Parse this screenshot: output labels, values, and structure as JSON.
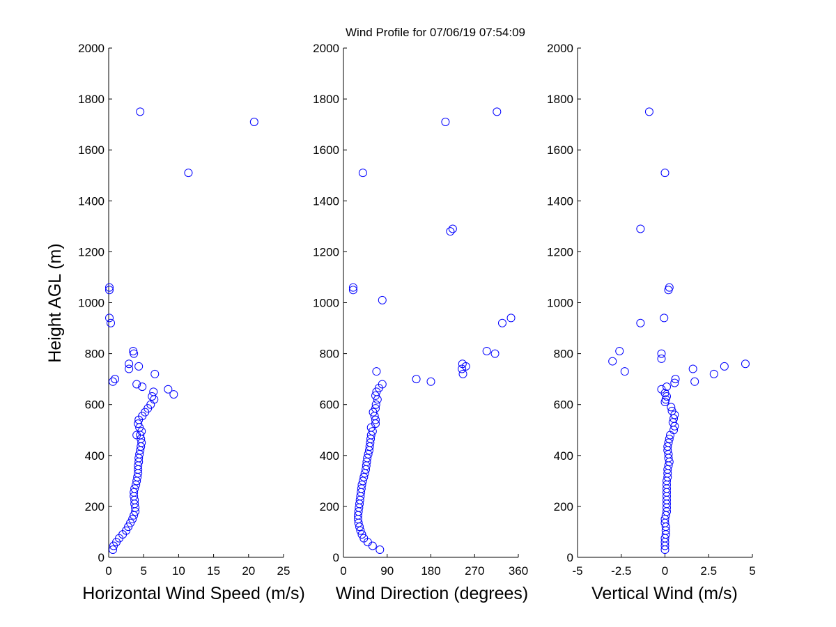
{
  "title": "Wind Profile for  07/06/19 07:54:09",
  "ylabel": "Height AGL (m)",
  "chart_data": [
    {
      "type": "scatter",
      "title": "Wind Profile for  07/06/19 07:54:09",
      "xlabel": "Horizontal Wind Speed (m/s)",
      "ylabel": "Height AGL (m)",
      "xlim": [
        0,
        25
      ],
      "ylim": [
        0,
        2000
      ],
      "xticks": [
        0,
        5,
        10,
        15,
        20,
        25
      ],
      "xtick_labels": [
        "0",
        "5",
        "10",
        "15",
        "20",
        "25"
      ],
      "yticks": [
        0,
        200,
        400,
        600,
        800,
        1000,
        1200,
        1400,
        1600,
        1800,
        2000
      ],
      "ytick_labels": [
        "0",
        "200",
        "400",
        "600",
        "800",
        "1000",
        "1200",
        "1400",
        "1600",
        "1800",
        "2000"
      ],
      "marker_color": "#0000ff",
      "points": [
        [
          0.6,
          30
        ],
        [
          0.7,
          45
        ],
        [
          1.1,
          60
        ],
        [
          1.5,
          75
        ],
        [
          2.0,
          90
        ],
        [
          2.5,
          105
        ],
        [
          2.8,
          120
        ],
        [
          3.1,
          135
        ],
        [
          3.4,
          150
        ],
        [
          3.6,
          165
        ],
        [
          3.8,
          180
        ],
        [
          3.8,
          195
        ],
        [
          3.7,
          210
        ],
        [
          3.7,
          225
        ],
        [
          3.6,
          240
        ],
        [
          3.6,
          255
        ],
        [
          3.7,
          270
        ],
        [
          3.9,
          285
        ],
        [
          4.0,
          300
        ],
        [
          4.1,
          315
        ],
        [
          4.2,
          330
        ],
        [
          4.2,
          345
        ],
        [
          4.2,
          360
        ],
        [
          4.3,
          375
        ],
        [
          4.3,
          390
        ],
        [
          4.4,
          405
        ],
        [
          4.5,
          420
        ],
        [
          4.6,
          435
        ],
        [
          4.7,
          450
        ],
        [
          4.6,
          465
        ],
        [
          4.5,
          480
        ],
        [
          4.0,
          480
        ],
        [
          4.7,
          495
        ],
        [
          4.4,
          510
        ],
        [
          4.2,
          525
        ],
        [
          4.3,
          540
        ],
        [
          4.8,
          555
        ],
        [
          5.2,
          570
        ],
        [
          5.6,
          585
        ],
        [
          6.0,
          600
        ],
        [
          6.5,
          620
        ],
        [
          6.2,
          632
        ],
        [
          6.4,
          650
        ],
        [
          8.5,
          660
        ],
        [
          9.3,
          640
        ],
        [
          4.8,
          670
        ],
        [
          4.0,
          680
        ],
        [
          0.6,
          690
        ],
        [
          0.9,
          700
        ],
        [
          6.6,
          720
        ],
        [
          4.3,
          750
        ],
        [
          2.9,
          740
        ],
        [
          2.9,
          760
        ],
        [
          3.6,
          800
        ],
        [
          3.5,
          810
        ],
        [
          0.3,
          920
        ],
        [
          0.1,
          940
        ],
        [
          0.1,
          1050
        ],
        [
          0.1,
          1060
        ],
        [
          11.4,
          1510
        ],
        [
          20.8,
          1710
        ],
        [
          4.5,
          1750
        ]
      ]
    },
    {
      "type": "scatter",
      "xlabel": "Wind Direction (degrees)",
      "xlim": [
        0,
        360
      ],
      "ylim": [
        0,
        2000
      ],
      "xticks": [
        0,
        90,
        180,
        270,
        360
      ],
      "xtick_labels": [
        "0",
        "90",
        "180",
        "270",
        "360"
      ],
      "yticks": [
        0,
        200,
        400,
        600,
        800,
        1000,
        1200,
        1400,
        1600,
        1800,
        2000
      ],
      "ytick_labels": [
        "0",
        "200",
        "400",
        "600",
        "800",
        "1000",
        "1200",
        "1400",
        "1600",
        "1800",
        "2000"
      ],
      "marker_color": "#0000ff",
      "points": [
        [
          75,
          30
        ],
        [
          60,
          45
        ],
        [
          50,
          60
        ],
        [
          42,
          75
        ],
        [
          38,
          90
        ],
        [
          35,
          105
        ],
        [
          33,
          120
        ],
        [
          31,
          135
        ],
        [
          30,
          150
        ],
        [
          30,
          165
        ],
        [
          31,
          180
        ],
        [
          32,
          195
        ],
        [
          33,
          210
        ],
        [
          34,
          225
        ],
        [
          35,
          240
        ],
        [
          36,
          255
        ],
        [
          37,
          270
        ],
        [
          38,
          285
        ],
        [
          40,
          300
        ],
        [
          42,
          315
        ],
        [
          44,
          330
        ],
        [
          46,
          345
        ],
        [
          47,
          360
        ],
        [
          48,
          375
        ],
        [
          49,
          390
        ],
        [
          51,
          405
        ],
        [
          53,
          420
        ],
        [
          54,
          435
        ],
        [
          55,
          450
        ],
        [
          56,
          465
        ],
        [
          57,
          480
        ],
        [
          60,
          495
        ],
        [
          57,
          510
        ],
        [
          66,
          525
        ],
        [
          66,
          540
        ],
        [
          64,
          555
        ],
        [
          61,
          570
        ],
        [
          66,
          585
        ],
        [
          67,
          600
        ],
        [
          70,
          620
        ],
        [
          66,
          635
        ],
        [
          68,
          650
        ],
        [
          73,
          665
        ],
        [
          80,
          680
        ],
        [
          150,
          700
        ],
        [
          180,
          690
        ],
        [
          68,
          730
        ],
        [
          246,
          720
        ],
        [
          244,
          740
        ],
        [
          245,
          760
        ],
        [
          252,
          750
        ],
        [
          295,
          810
        ],
        [
          312,
          800
        ],
        [
          327,
          920
        ],
        [
          345,
          940
        ],
        [
          80,
          1010
        ],
        [
          20,
          1050
        ],
        [
          20,
          1060
        ],
        [
          220,
          1280
        ],
        [
          225,
          1290
        ],
        [
          40,
          1510
        ],
        [
          210,
          1710
        ],
        [
          316,
          1750
        ]
      ]
    },
    {
      "type": "scatter",
      "xlabel": "Vertical Wind (m/s)",
      "xlim": [
        -5,
        5
      ],
      "ylim": [
        0,
        2000
      ],
      "xticks": [
        -5,
        -2.5,
        0,
        2.5,
        5
      ],
      "xtick_labels": [
        "-5",
        "-2.5",
        "0",
        "2.5",
        "5"
      ],
      "yticks": [
        0,
        200,
        400,
        600,
        800,
        1000,
        1200,
        1400,
        1600,
        1800,
        2000
      ],
      "ytick_labels": [
        "0",
        "200",
        "400",
        "600",
        "800",
        "1000",
        "1200",
        "1400",
        "1600",
        "1800",
        "2000"
      ],
      "marker_color": "#0000ff",
      "points": [
        [
          0.0,
          30
        ],
        [
          0.0,
          45
        ],
        [
          0.0,
          60
        ],
        [
          0.0,
          75
        ],
        [
          0.05,
          90
        ],
        [
          0.05,
          105
        ],
        [
          0.05,
          120
        ],
        [
          0.0,
          135
        ],
        [
          0.0,
          150
        ],
        [
          0.05,
          165
        ],
        [
          0.1,
          180
        ],
        [
          0.1,
          195
        ],
        [
          0.1,
          210
        ],
        [
          0.1,
          225
        ],
        [
          0.1,
          240
        ],
        [
          0.1,
          255
        ],
        [
          0.1,
          270
        ],
        [
          0.1,
          285
        ],
        [
          0.1,
          300
        ],
        [
          0.15,
          315
        ],
        [
          0.15,
          330
        ],
        [
          0.15,
          345
        ],
        [
          0.2,
          360
        ],
        [
          0.25,
          375
        ],
        [
          0.2,
          390
        ],
        [
          0.2,
          405
        ],
        [
          0.15,
          420
        ],
        [
          0.15,
          435
        ],
        [
          0.2,
          450
        ],
        [
          0.25,
          465
        ],
        [
          0.3,
          480
        ],
        [
          0.5,
          500
        ],
        [
          0.55,
          515
        ],
        [
          0.45,
          530
        ],
        [
          0.5,
          545
        ],
        [
          0.55,
          560
        ],
        [
          0.4,
          575
        ],
        [
          0.35,
          590
        ],
        [
          0.0,
          610
        ],
        [
          0.05,
          620
        ],
        [
          0.1,
          632
        ],
        [
          0.0,
          645
        ],
        [
          -0.2,
          660
        ],
        [
          0.1,
          670
        ],
        [
          0.55,
          685
        ],
        [
          0.6,
          700
        ],
        [
          1.7,
          690
        ],
        [
          2.8,
          720
        ],
        [
          -2.3,
          730
        ],
        [
          1.6,
          740
        ],
        [
          3.4,
          750
        ],
        [
          4.6,
          760
        ],
        [
          -3.0,
          770
        ],
        [
          -0.2,
          780
        ],
        [
          -2.6,
          810
        ],
        [
          -0.2,
          800
        ],
        [
          -1.4,
          920
        ],
        [
          -0.05,
          940
        ],
        [
          0.2,
          1050
        ],
        [
          0.25,
          1060
        ],
        [
          -1.4,
          1290
        ],
        [
          0.0,
          1510
        ],
        [
          -0.9,
          1750
        ]
      ]
    }
  ]
}
